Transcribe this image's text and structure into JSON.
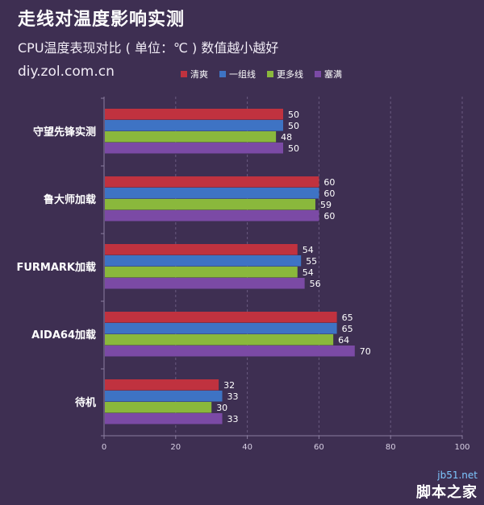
{
  "header": {
    "title": "走线对温度影响实测",
    "subtitle": "CPU温度表现对比 ( 单位：℃ ) 数值越小越好",
    "source": "diy.zol.com.cn"
  },
  "legend": [
    {
      "name": "清爽",
      "color": "#c0323f"
    },
    {
      "name": "一组线",
      "color": "#3e73c4"
    },
    {
      "name": "更多线",
      "color": "#8ab83c"
    },
    {
      "name": "塞满",
      "color": "#7b4aa5"
    }
  ],
  "colors": {
    "background": "#3e2f52",
    "grid": "#6a5a80",
    "axis": "#8b7ea0"
  },
  "chart_data": {
    "type": "bar",
    "orientation": "horizontal",
    "title": "走线对温度影响实测",
    "subtitle": "CPU温度表现对比 ( 单位：℃ ) 数值越小越好",
    "categories": [
      "守望先锋实测",
      "鲁大师加载",
      "FURMARK加载",
      "AIDA64加载",
      "待机"
    ],
    "series": [
      {
        "name": "清爽",
        "values": [
          50,
          60,
          54,
          65,
          32
        ]
      },
      {
        "name": "一组线",
        "values": [
          50,
          60,
          55,
          65,
          33
        ]
      },
      {
        "name": "更多线",
        "values": [
          48,
          59,
          54,
          64,
          30
        ]
      },
      {
        "name": "塞满",
        "values": [
          50,
          60,
          56,
          70,
          33
        ]
      }
    ],
    "xlim": [
      0,
      100
    ],
    "xticks": [
      0,
      20,
      40,
      60,
      80,
      100
    ],
    "xlabel": "",
    "ylabel": "",
    "grid": true,
    "legend_position": "top"
  },
  "watermark": {
    "site": "jb51.net",
    "name": "脚本之家"
  }
}
